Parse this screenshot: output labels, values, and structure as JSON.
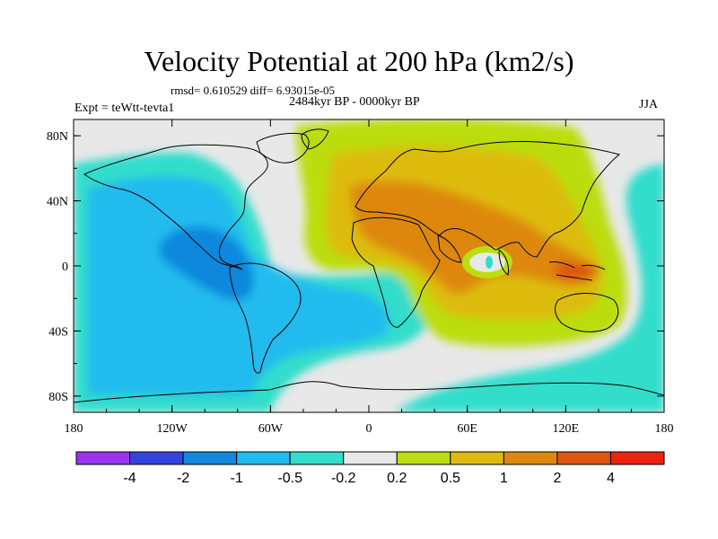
{
  "header": {
    "title": "Velocity Potential at 200 hPa (km2/s)",
    "stats": "rmsd= 0.610529 diff= 6.93015e-05",
    "period": "2484kyr BP - 0000kyr BP",
    "experiment": "Expt = teWtt-tevta1",
    "season": "JJA"
  },
  "map": {
    "projection": "cylindrical equidistant",
    "lon_range": [
      -180,
      180
    ],
    "lat_range": [
      -90,
      90
    ],
    "x_ticks": [
      {
        "lon": -180,
        "label": "180"
      },
      {
        "lon": -120,
        "label": "120W"
      },
      {
        "lon": -60,
        "label": "60W"
      },
      {
        "lon": 0,
        "label": "0"
      },
      {
        "lon": 60,
        "label": "60E"
      },
      {
        "lon": 120,
        "label": "120E"
      },
      {
        "lon": 180,
        "label": "180"
      }
    ],
    "y_ticks": [
      {
        "lat": 80,
        "label": "80N"
      },
      {
        "lat": 40,
        "label": "40N"
      },
      {
        "lat": 0,
        "label": "0"
      },
      {
        "lat": -40,
        "label": "40S"
      },
      {
        "lat": -80,
        "label": "80S"
      }
    ]
  },
  "colorbar": {
    "colors": [
      "#9933ee",
      "#3344dd",
      "#1188dd",
      "#22bbee",
      "#33ddcc",
      "#e8e8e8",
      "#bbdd11",
      "#ddbb11",
      "#dd8811",
      "#dd5511",
      "#ee2211"
    ],
    "labels": [
      "-4",
      "-2",
      "-1",
      "-0.5",
      "-0.2",
      "0.2",
      "0.5",
      "1",
      "2",
      "4"
    ]
  }
}
